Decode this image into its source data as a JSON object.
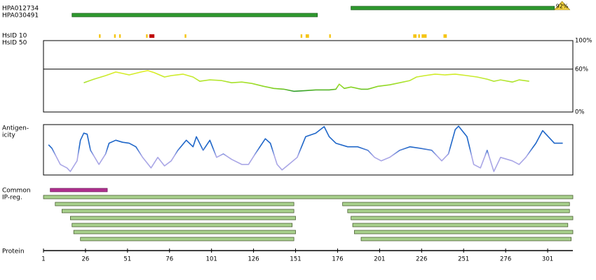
{
  "chart_data": {
    "type": "protein-map",
    "xlim": [
      1,
      316
    ],
    "xticks": [
      1,
      26,
      51,
      76,
      101,
      126,
      151,
      176,
      201,
      226,
      251,
      276,
      301
    ],
    "x_label": "Protein",
    "antibodies": [
      {
        "name": "HPA012734",
        "start": 184,
        "end": 305,
        "identity": "92%"
      },
      {
        "name": "HPA030491",
        "start": 18,
        "end": 164
      }
    ],
    "hsid_labels": [
      "HsID 10",
      "HsID 50"
    ],
    "hsid10": [
      {
        "start": 34,
        "end": 35,
        "color": "#f5c518"
      },
      {
        "start": 43,
        "end": 44,
        "color": "#f5c518"
      },
      {
        "start": 46,
        "end": 47,
        "color": "#f5c518"
      },
      {
        "start": 62,
        "end": 63,
        "color": "#f5c518"
      },
      {
        "start": 64,
        "end": 67,
        "color": "#c00000"
      },
      {
        "start": 85,
        "end": 86,
        "color": "#f5c518"
      },
      {
        "start": 154,
        "end": 155,
        "color": "#f5c518"
      },
      {
        "start": 157,
        "end": 159,
        "color": "#f5c518"
      },
      {
        "start": 171,
        "end": 172,
        "color": "#f5c518"
      },
      {
        "start": 221,
        "end": 223,
        "color": "#f5c518"
      },
      {
        "start": 224,
        "end": 225,
        "color": "#f5c518"
      },
      {
        "start": 226,
        "end": 229,
        "color": "#f5c518"
      },
      {
        "start": 239,
        "end": 241,
        "color": "#f5c518"
      }
    ],
    "similarity": {
      "ylim": [
        0,
        100
      ],
      "yticks": [
        {
          "value": 0,
          "label": "0%"
        },
        {
          "value": 60,
          "label": "60%"
        },
        {
          "value": 100,
          "label": "100%"
        }
      ],
      "x": [
        25,
        31,
        38,
        44,
        48,
        52,
        59,
        63,
        67,
        73,
        77,
        84,
        90,
        94,
        100,
        107,
        113,
        119,
        125,
        132,
        138,
        144,
        150,
        157,
        163,
        171,
        175,
        177,
        180,
        184,
        190,
        194,
        200,
        207,
        213,
        219,
        223,
        228,
        234,
        240,
        246,
        253,
        259,
        265,
        269,
        273,
        280,
        284,
        290
      ],
      "values": [
        41,
        46,
        51,
        56,
        54,
        52,
        56,
        58,
        55,
        49,
        51,
        53,
        49,
        43,
        45,
        44,
        41,
        42,
        40,
        36,
        33,
        32,
        29,
        30,
        31,
        31,
        32,
        39,
        33,
        35,
        32,
        32,
        36,
        38,
        41,
        44,
        49,
        51,
        53,
        52,
        53,
        51,
        49,
        46,
        43,
        45,
        42,
        45,
        43
      ]
    },
    "antigenicity": {
      "label": [
        "Antigen-",
        "icity"
      ],
      "ylim": [
        0,
        100
      ],
      "x": [
        4,
        6,
        11,
        15,
        17,
        21,
        23,
        25,
        27,
        29,
        34,
        38,
        40,
        44,
        48,
        52,
        56,
        60,
        65,
        69,
        73,
        77,
        81,
        86,
        90,
        92,
        96,
        100,
        104,
        108,
        113,
        119,
        123,
        127,
        133,
        136,
        140,
        143,
        147,
        152,
        157,
        163,
        168,
        171,
        175,
        182,
        188,
        194,
        198,
        202,
        207,
        213,
        219,
        225,
        232,
        238,
        242,
        246,
        248,
        253,
        257,
        261,
        265,
        269,
        273,
        280,
        284,
        288,
        294,
        298,
        305,
        310
      ],
      "values": [
        60,
        53,
        21,
        14,
        7,
        28,
        69,
        83,
        81,
        49,
        21,
        42,
        63,
        69,
        65,
        63,
        56,
        35,
        14,
        35,
        18,
        28,
        49,
        69,
        56,
        76,
        49,
        69,
        35,
        42,
        31,
        21,
        21,
        42,
        72,
        63,
        21,
        10,
        21,
        35,
        76,
        83,
        96,
        76,
        63,
        56,
        56,
        49,
        35,
        28,
        35,
        49,
        56,
        53,
        49,
        28,
        42,
        90,
        97,
        76,
        21,
        14,
        49,
        7,
        35,
        28,
        21,
        35,
        63,
        88,
        63,
        63
      ]
    },
    "common": {
      "label": "Common",
      "start": 5,
      "end": 39,
      "color": "#b0308f"
    },
    "ip_reg": {
      "label": "IP-reg.",
      "rows": [
        [
          [
            1,
            316
          ]
        ],
        [
          [
            8,
            150
          ],
          [
            179,
            314
          ]
        ],
        [
          [
            12,
            150
          ],
          [
            182,
            314
          ]
        ],
        [
          [
            17,
            151
          ],
          [
            184,
            316
          ]
        ],
        [
          [
            18,
            149
          ],
          [
            185,
            313
          ]
        ],
        [
          [
            19,
            151
          ],
          [
            186,
            316
          ]
        ],
        [
          [
            23,
            150
          ],
          [
            190,
            315
          ]
        ]
      ]
    }
  }
}
